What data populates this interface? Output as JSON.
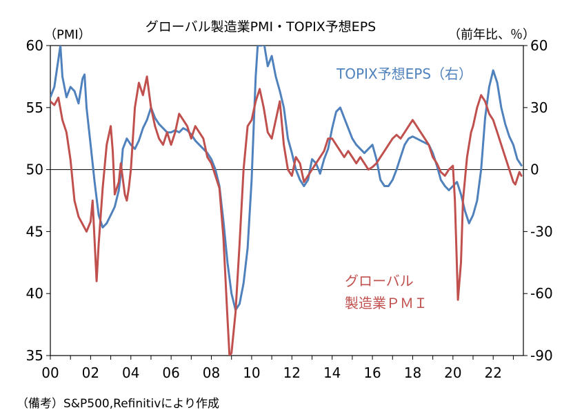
{
  "chart_data": {
    "type": "line",
    "title": "グローバル製造業PMI・TOPIX予想EPS",
    "left_axis_unit": "（PMI）",
    "right_axis_unit": "（前年比、％）",
    "note": "（備考）S&P500,Refinitivにより作成",
    "x_range": [
      2000.0,
      2023.5
    ],
    "x_ticks": [
      "00",
      "02",
      "04",
      "06",
      "08",
      "10",
      "12",
      "14",
      "16",
      "18",
      "20",
      "22"
    ],
    "left_axis": {
      "range": [
        35,
        60
      ],
      "ticks": [
        "60",
        "55",
        "50",
        "45",
        "40",
        "35"
      ]
    },
    "right_axis": {
      "range": [
        -90,
        60
      ],
      "ticks": [
        "60",
        "30",
        "0",
        "-30",
        "-60",
        "-90"
      ]
    },
    "grid": false,
    "reference_line": 50,
    "series": [
      {
        "name": "グローバル製造業PMI",
        "label_lines": [
          "グローバル",
          "製造業ＰＭＩ"
        ],
        "axis": "left",
        "color": "#c0504d",
        "points": [
          [
            2000.0,
            55.5
          ],
          [
            2000.2,
            55.2
          ],
          [
            2000.4,
            55.8
          ],
          [
            2000.6,
            54.0
          ],
          [
            2000.8,
            53.0
          ],
          [
            2001.0,
            50.8
          ],
          [
            2001.2,
            47.5
          ],
          [
            2001.4,
            46.2
          ],
          [
            2001.6,
            45.6
          ],
          [
            2001.8,
            45.0
          ],
          [
            2002.0,
            45.8
          ],
          [
            2002.1,
            47.5
          ],
          [
            2002.3,
            41.0
          ],
          [
            2002.4,
            44.0
          ],
          [
            2002.6,
            48.5
          ],
          [
            2002.8,
            52.0
          ],
          [
            2003.0,
            53.5
          ],
          [
            2003.1,
            51.5
          ],
          [
            2003.2,
            48.0
          ],
          [
            2003.4,
            49.0
          ],
          [
            2003.5,
            50.5
          ],
          [
            2003.7,
            48.0
          ],
          [
            2003.8,
            47.5
          ],
          [
            2003.9,
            48.5
          ],
          [
            2004.0,
            50.0
          ],
          [
            2004.2,
            55.0
          ],
          [
            2004.4,
            57.0
          ],
          [
            2004.6,
            56.0
          ],
          [
            2004.8,
            57.5
          ],
          [
            2005.0,
            55.0
          ],
          [
            2005.2,
            53.5
          ],
          [
            2005.4,
            52.5
          ],
          [
            2005.6,
            52.0
          ],
          [
            2005.8,
            53.0
          ],
          [
            2006.0,
            52.0
          ],
          [
            2006.2,
            53.0
          ],
          [
            2006.4,
            54.5
          ],
          [
            2006.6,
            54.0
          ],
          [
            2006.8,
            53.5
          ],
          [
            2007.0,
            52.5
          ],
          [
            2007.2,
            53.5
          ],
          [
            2007.4,
            53.0
          ],
          [
            2007.6,
            52.5
          ],
          [
            2007.8,
            51.0
          ],
          [
            2008.0,
            50.5
          ],
          [
            2008.2,
            49.5
          ],
          [
            2008.4,
            48.5
          ],
          [
            2008.6,
            44.5
          ],
          [
            2008.8,
            38.0
          ],
          [
            2008.9,
            35.0
          ],
          [
            2009.0,
            35.2
          ],
          [
            2009.2,
            38.5
          ],
          [
            2009.4,
            44.0
          ],
          [
            2009.6,
            50.0
          ],
          [
            2009.8,
            53.5
          ],
          [
            2010.0,
            54.0
          ],
          [
            2010.2,
            55.5
          ],
          [
            2010.4,
            56.5
          ],
          [
            2010.6,
            55.0
          ],
          [
            2010.8,
            53.0
          ],
          [
            2011.0,
            52.5
          ],
          [
            2011.2,
            54.0
          ],
          [
            2011.4,
            55.5
          ],
          [
            2011.6,
            52.0
          ],
          [
            2011.8,
            50.0
          ],
          [
            2012.0,
            49.5
          ],
          [
            2012.2,
            51.0
          ],
          [
            2012.4,
            50.5
          ],
          [
            2012.6,
            49.0
          ],
          [
            2012.8,
            49.5
          ],
          [
            2013.0,
            50.0
          ],
          [
            2013.2,
            50.5
          ],
          [
            2013.4,
            51.0
          ],
          [
            2013.6,
            51.5
          ],
          [
            2013.8,
            52.5
          ],
          [
            2014.0,
            52.5
          ],
          [
            2014.2,
            52.0
          ],
          [
            2014.4,
            51.5
          ],
          [
            2014.6,
            51.0
          ],
          [
            2014.8,
            51.5
          ],
          [
            2015.0,
            51.0
          ],
          [
            2015.2,
            50.5
          ],
          [
            2015.4,
            51.0
          ],
          [
            2015.6,
            50.5
          ],
          [
            2015.8,
            50.0
          ],
          [
            2016.0,
            50.2
          ],
          [
            2016.2,
            50.5
          ],
          [
            2016.4,
            51.0
          ],
          [
            2016.6,
            51.5
          ],
          [
            2016.8,
            52.0
          ],
          [
            2017.0,
            52.5
          ],
          [
            2017.2,
            52.8
          ],
          [
            2017.4,
            52.5
          ],
          [
            2017.6,
            53.0
          ],
          [
            2017.8,
            53.5
          ],
          [
            2018.0,
            54.0
          ],
          [
            2018.2,
            53.5
          ],
          [
            2018.4,
            53.0
          ],
          [
            2018.6,
            52.5
          ],
          [
            2018.8,
            52.0
          ],
          [
            2019.0,
            51.0
          ],
          [
            2019.2,
            50.5
          ],
          [
            2019.4,
            49.8
          ],
          [
            2019.6,
            49.5
          ],
          [
            2019.8,
            50.0
          ],
          [
            2020.0,
            50.3
          ],
          [
            2020.1,
            47.5
          ],
          [
            2020.25,
            39.5
          ],
          [
            2020.4,
            42.5
          ],
          [
            2020.5,
            47.5
          ],
          [
            2020.7,
            51.0
          ],
          [
            2020.9,
            53.0
          ],
          [
            2021.0,
            53.5
          ],
          [
            2021.2,
            55.0
          ],
          [
            2021.4,
            56.0
          ],
          [
            2021.6,
            55.5
          ],
          [
            2021.8,
            54.5
          ],
          [
            2022.0,
            54.0
          ],
          [
            2022.2,
            53.0
          ],
          [
            2022.4,
            52.0
          ],
          [
            2022.6,
            51.0
          ],
          [
            2022.8,
            50.0
          ],
          [
            2023.0,
            49.0
          ],
          [
            2023.1,
            48.8
          ],
          [
            2023.3,
            49.8
          ],
          [
            2023.4,
            49.5
          ]
        ]
      },
      {
        "name": "TOPIX予想EPS（右）",
        "axis": "right",
        "color": "#4f81bd",
        "points": [
          [
            2000.0,
            35
          ],
          [
            2000.2,
            40
          ],
          [
            2000.35,
            50
          ],
          [
            2000.5,
            60
          ],
          [
            2000.6,
            45
          ],
          [
            2000.8,
            35
          ],
          [
            2001.0,
            40
          ],
          [
            2001.2,
            38
          ],
          [
            2001.4,
            32
          ],
          [
            2001.6,
            44
          ],
          [
            2001.7,
            46
          ],
          [
            2001.8,
            30
          ],
          [
            2002.0,
            12
          ],
          [
            2002.2,
            -6
          ],
          [
            2002.4,
            -22
          ],
          [
            2002.6,
            -28
          ],
          [
            2002.8,
            -26
          ],
          [
            2003.0,
            -22
          ],
          [
            2003.2,
            -18
          ],
          [
            2003.4,
            -10
          ],
          [
            2003.5,
            -2
          ],
          [
            2003.6,
            10
          ],
          [
            2003.8,
            15
          ],
          [
            2004.0,
            12
          ],
          [
            2004.2,
            10
          ],
          [
            2004.4,
            14
          ],
          [
            2004.6,
            20
          ],
          [
            2004.8,
            24
          ],
          [
            2005.0,
            30
          ],
          [
            2005.2,
            25
          ],
          [
            2005.4,
            22
          ],
          [
            2005.6,
            20
          ],
          [
            2005.8,
            18
          ],
          [
            2006.0,
            18
          ],
          [
            2006.2,
            19
          ],
          [
            2006.4,
            18
          ],
          [
            2006.6,
            20
          ],
          [
            2006.8,
            19
          ],
          [
            2007.0,
            17
          ],
          [
            2007.2,
            14
          ],
          [
            2007.4,
            12
          ],
          [
            2007.6,
            10
          ],
          [
            2007.8,
            8
          ],
          [
            2008.0,
            5
          ],
          [
            2008.2,
            0
          ],
          [
            2008.4,
            -8
          ],
          [
            2008.6,
            -25
          ],
          [
            2008.8,
            -45
          ],
          [
            2009.0,
            -60
          ],
          [
            2009.2,
            -68
          ],
          [
            2009.4,
            -65
          ],
          [
            2009.6,
            -55
          ],
          [
            2009.8,
            -38
          ],
          [
            2010.0,
            -5
          ],
          [
            2010.1,
            20
          ],
          [
            2010.2,
            45
          ],
          [
            2010.3,
            60
          ],
          [
            2010.5,
            60
          ],
          [
            2010.6,
            62
          ],
          [
            2010.8,
            50
          ],
          [
            2011.0,
            55
          ],
          [
            2011.2,
            45
          ],
          [
            2011.4,
            38
          ],
          [
            2011.6,
            30
          ],
          [
            2011.8,
            15
          ],
          [
            2012.0,
            8
          ],
          [
            2012.2,
            0
          ],
          [
            2012.4,
            -5
          ],
          [
            2012.6,
            -8
          ],
          [
            2012.8,
            -5
          ],
          [
            2013.0,
            5
          ],
          [
            2013.2,
            3
          ],
          [
            2013.4,
            -2
          ],
          [
            2013.6,
            5
          ],
          [
            2013.8,
            10
          ],
          [
            2014.0,
            20
          ],
          [
            2014.2,
            28
          ],
          [
            2014.4,
            30
          ],
          [
            2014.6,
            25
          ],
          [
            2014.8,
            20
          ],
          [
            2015.0,
            15
          ],
          [
            2015.2,
            12
          ],
          [
            2015.4,
            10
          ],
          [
            2015.6,
            8
          ],
          [
            2015.8,
            10
          ],
          [
            2016.0,
            12
          ],
          [
            2016.2,
            5
          ],
          [
            2016.4,
            -5
          ],
          [
            2016.6,
            -8
          ],
          [
            2016.8,
            -8
          ],
          [
            2017.0,
            -5
          ],
          [
            2017.2,
            0
          ],
          [
            2017.4,
            6
          ],
          [
            2017.6,
            12
          ],
          [
            2017.8,
            15
          ],
          [
            2018.0,
            16
          ],
          [
            2018.2,
            15
          ],
          [
            2018.4,
            14
          ],
          [
            2018.6,
            13
          ],
          [
            2018.8,
            12
          ],
          [
            2019.0,
            8
          ],
          [
            2019.2,
            2
          ],
          [
            2019.4,
            -5
          ],
          [
            2019.6,
            -8
          ],
          [
            2019.8,
            -10
          ],
          [
            2020.0,
            -8
          ],
          [
            2020.2,
            -6
          ],
          [
            2020.4,
            -12
          ],
          [
            2020.6,
            -20
          ],
          [
            2020.8,
            -26
          ],
          [
            2021.0,
            -22
          ],
          [
            2021.2,
            -15
          ],
          [
            2021.4,
            0
          ],
          [
            2021.6,
            25
          ],
          [
            2021.8,
            40
          ],
          [
            2022.0,
            48
          ],
          [
            2022.2,
            42
          ],
          [
            2022.4,
            30
          ],
          [
            2022.6,
            22
          ],
          [
            2022.8,
            16
          ],
          [
            2023.0,
            12
          ],
          [
            2023.2,
            5
          ],
          [
            2023.4,
            2
          ]
        ]
      }
    ]
  }
}
